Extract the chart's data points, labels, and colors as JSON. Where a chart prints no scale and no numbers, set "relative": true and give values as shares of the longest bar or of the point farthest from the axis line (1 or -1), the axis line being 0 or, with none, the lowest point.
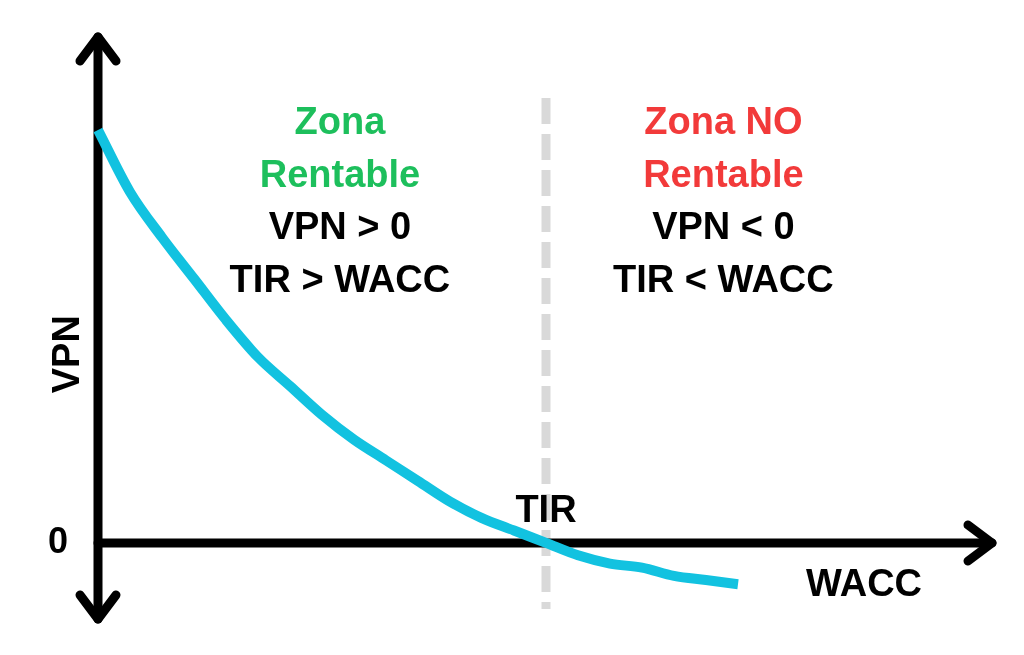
{
  "chart_data": {
    "type": "line",
    "xlabel": "WACC",
    "ylabel": "VPN",
    "relative": true,
    "categories": [
      null,
      null,
      null,
      null,
      null,
      null,
      null,
      null,
      null,
      null,
      null,
      null,
      null,
      null,
      null,
      null,
      null,
      null,
      null,
      null,
      null,
      null,
      null,
      null,
      null,
      null,
      null,
      null,
      null
    ],
    "series": [
      {
        "color": "#12c2e0",
        "values": [
          1,
          0.85,
          0.74,
          0.64,
          0.54,
          0.45,
          0.38,
          0.31,
          0.25,
          0.2,
          0.15,
          0.1,
          0.06,
          0.03,
          0,
          -0.03,
          -0.05,
          -0.06,
          -0.08,
          -0.09,
          -0.1,
          null,
          null,
          null,
          null,
          null,
          null,
          null,
          null
        ]
      }
    ],
    "ref_lines": [
      {
        "axis": "x",
        "label": "TIR",
        "color": "#d9d9d9",
        "line_style": "dashed"
      }
    ],
    "annotations": [
      "Zona\nRentable",
      "VPN > 0",
      "TIR > WACC",
      "Zona NO\nRentable",
      "VPN < 0",
      "TIR < WACC",
      "0"
    ]
  }
}
